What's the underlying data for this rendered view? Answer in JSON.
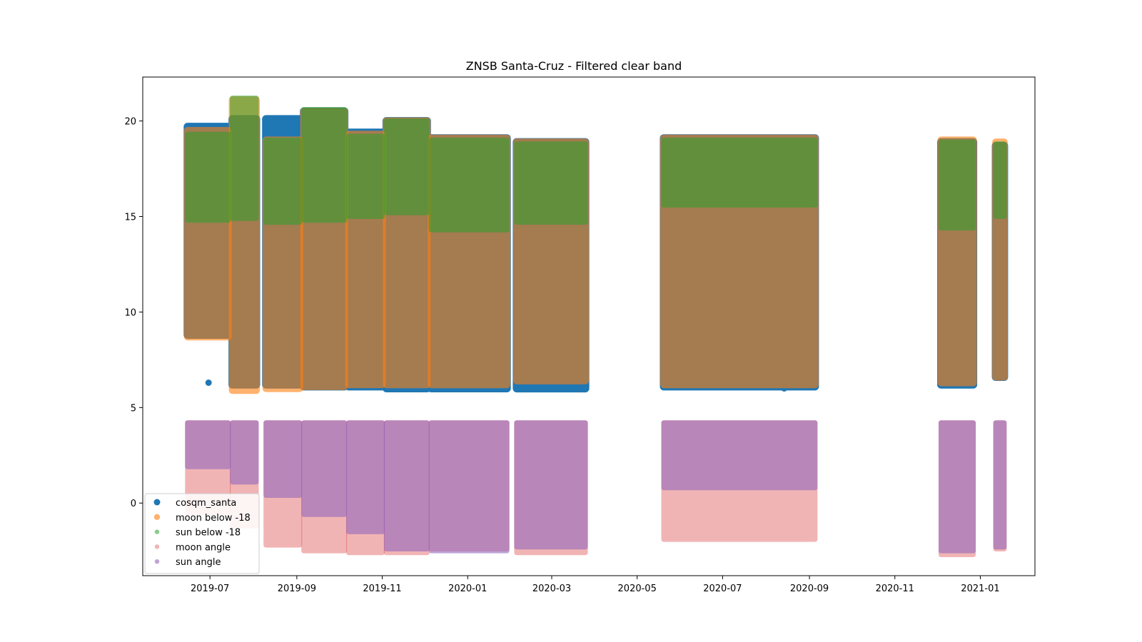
{
  "chart_data": {
    "type": "scatter",
    "title": "ZNSB Santa-Cruz - Filtered clear band",
    "xlabel": "",
    "ylabel": "",
    "xlim": [
      "2019-05-14",
      "2021-02-09"
    ],
    "ylim": [
      -3.8,
      22.3
    ],
    "x_ticks": [
      "2019-07",
      "2019-09",
      "2019-11",
      "2020-01",
      "2020-03",
      "2020-05",
      "2020-07",
      "2020-09",
      "2020-11",
      "2021-01"
    ],
    "y_ticks": [
      0,
      5,
      10,
      15,
      20
    ],
    "grid": false,
    "legend": {
      "position": "lower-left",
      "entries": [
        "cosqm_santa",
        "moon below -18",
        "sun below -18",
        "moon angle",
        "sun angle"
      ]
    },
    "colors": {
      "cosqm_santa": "#1f77b4",
      "moon below -18": "#ff7f0e",
      "sun below -18": "#2ca02c",
      "moon angle": "#d62728",
      "sun angle": "#9467bd"
    },
    "series": [
      {
        "name": "cosqm_santa",
        "ranges": [
          {
            "start": "2019-06-15",
            "end": "2019-07-14",
            "ymin": 8.8,
            "ymax": 19.7
          },
          {
            "start": "2019-07-17",
            "end": "2019-08-03",
            "ymin": 6.2,
            "ymax": 20.1
          },
          {
            "start": "2019-08-10",
            "end": "2019-09-03",
            "ymin": 6.2,
            "ymax": 20.1
          },
          {
            "start": "2019-09-06",
            "end": "2019-10-05",
            "ymin": 6.1,
            "ymax": 20.5
          },
          {
            "start": "2019-10-08",
            "end": "2019-11-01",
            "ymin": 6.1,
            "ymax": 19.4
          },
          {
            "start": "2019-11-04",
            "end": "2019-12-03",
            "ymin": 6.0,
            "ymax": 20.0
          },
          {
            "start": "2019-12-06",
            "end": "2020-01-29",
            "ymin": 6.0,
            "ymax": 19.1
          },
          {
            "start": "2020-02-05",
            "end": "2020-03-25",
            "ymin": 6.0,
            "ymax": 18.9
          },
          {
            "start": "2020-05-20",
            "end": "2020-09-05",
            "ymin": 6.1,
            "ymax": 19.1
          },
          {
            "start": "2020-12-04",
            "end": "2020-12-27",
            "ymin": 6.2,
            "ymax": 18.9
          },
          {
            "start": "2021-01-12",
            "end": "2021-01-18",
            "ymin": 6.6,
            "ymax": 18.7
          }
        ],
        "outliers": [
          {
            "x": "2019-06-30",
            "y": 6.3
          },
          {
            "x": "2020-08-14",
            "y": 6.0
          }
        ]
      },
      {
        "name": "moon below -18",
        "ranges": [
          {
            "start": "2019-06-15",
            "end": "2019-07-14",
            "ymin": 8.7,
            "ymax": 19.5
          },
          {
            "start": "2019-07-17",
            "end": "2019-08-03",
            "ymin": 5.9,
            "ymax": 21.1
          },
          {
            "start": "2019-08-10",
            "end": "2019-09-03",
            "ymin": 6.0,
            "ymax": 19.0
          },
          {
            "start": "2019-09-06",
            "end": "2019-10-05",
            "ymin": 6.1,
            "ymax": 20.5
          },
          {
            "start": "2019-10-08",
            "end": "2019-11-01",
            "ymin": 6.2,
            "ymax": 19.3
          },
          {
            "start": "2019-11-04",
            "end": "2019-12-03",
            "ymin": 6.2,
            "ymax": 20.0
          },
          {
            "start": "2019-12-06",
            "end": "2020-01-29",
            "ymin": 6.2,
            "ymax": 19.1
          },
          {
            "start": "2020-02-05",
            "end": "2020-03-25",
            "ymin": 6.4,
            "ymax": 18.9
          },
          {
            "start": "2020-05-20",
            "end": "2020-09-05",
            "ymin": 6.2,
            "ymax": 19.1
          },
          {
            "start": "2020-12-04",
            "end": "2020-12-27",
            "ymin": 6.3,
            "ymax": 19.0
          },
          {
            "start": "2021-01-12",
            "end": "2021-01-18",
            "ymin": 6.6,
            "ymax": 18.9
          }
        ]
      },
      {
        "name": "sun below -18",
        "ranges": [
          {
            "start": "2019-06-15",
            "end": "2019-07-14",
            "ymin": 14.8,
            "ymax": 19.3
          },
          {
            "start": "2019-07-17",
            "end": "2019-08-03",
            "ymin": 14.9,
            "ymax": 21.2
          },
          {
            "start": "2019-08-10",
            "end": "2019-09-03",
            "ymin": 14.7,
            "ymax": 19.0
          },
          {
            "start": "2019-09-06",
            "end": "2019-10-05",
            "ymin": 14.8,
            "ymax": 20.6
          },
          {
            "start": "2019-10-08",
            "end": "2019-11-01",
            "ymin": 15.0,
            "ymax": 19.2
          },
          {
            "start": "2019-11-04",
            "end": "2019-12-03",
            "ymin": 15.2,
            "ymax": 20.0
          },
          {
            "start": "2019-12-06",
            "end": "2020-01-29",
            "ymin": 14.3,
            "ymax": 19.0
          },
          {
            "start": "2020-02-05",
            "end": "2020-03-25",
            "ymin": 14.7,
            "ymax": 18.8
          },
          {
            "start": "2020-05-20",
            "end": "2020-09-05",
            "ymin": 15.6,
            "ymax": 19.0
          },
          {
            "start": "2020-12-04",
            "end": "2020-12-27",
            "ymin": 14.4,
            "ymax": 18.9
          },
          {
            "start": "2021-01-12",
            "end": "2021-01-18",
            "ymin": 15.0,
            "ymax": 18.8
          }
        ]
      },
      {
        "name": "moon angle",
        "ranges": [
          {
            "start": "2019-06-15",
            "end": "2019-07-14",
            "ymin": -0.5,
            "ymax": 4.2
          },
          {
            "start": "2019-07-17",
            "end": "2019-08-03",
            "ymin": -1.2,
            "ymax": 4.2
          },
          {
            "start": "2019-08-10",
            "end": "2019-09-03",
            "ymin": -2.2,
            "ymax": 4.2
          },
          {
            "start": "2019-09-06",
            "end": "2019-10-05",
            "ymin": -2.5,
            "ymax": 4.2
          },
          {
            "start": "2019-10-08",
            "end": "2019-11-01",
            "ymin": -2.6,
            "ymax": 4.2
          },
          {
            "start": "2019-11-04",
            "end": "2019-12-03",
            "ymin": -2.6,
            "ymax": 4.2
          },
          {
            "start": "2019-12-06",
            "end": "2020-01-29",
            "ymin": -2.4,
            "ymax": 4.2
          },
          {
            "start": "2020-02-05",
            "end": "2020-03-25",
            "ymin": -2.6,
            "ymax": 4.2
          },
          {
            "start": "2020-05-20",
            "end": "2020-09-05",
            "ymin": -1.9,
            "ymax": 4.2
          },
          {
            "start": "2020-12-04",
            "end": "2020-12-27",
            "ymin": -2.7,
            "ymax": 4.2
          },
          {
            "start": "2021-01-12",
            "end": "2021-01-18",
            "ymin": -2.4,
            "ymax": 4.2
          }
        ]
      },
      {
        "name": "sun angle",
        "ranges": [
          {
            "start": "2019-06-15",
            "end": "2019-07-14",
            "ymin": 1.9,
            "ymax": 4.2
          },
          {
            "start": "2019-07-17",
            "end": "2019-08-03",
            "ymin": 1.1,
            "ymax": 4.2
          },
          {
            "start": "2019-08-10",
            "end": "2019-09-03",
            "ymin": 0.4,
            "ymax": 4.2
          },
          {
            "start": "2019-09-06",
            "end": "2019-10-05",
            "ymin": -0.6,
            "ymax": 4.2
          },
          {
            "start": "2019-10-08",
            "end": "2019-11-01",
            "ymin": -1.5,
            "ymax": 4.2
          },
          {
            "start": "2019-11-04",
            "end": "2019-12-03",
            "ymin": -2.4,
            "ymax": 4.2
          },
          {
            "start": "2019-12-06",
            "end": "2020-01-29",
            "ymin": -2.5,
            "ymax": 4.2
          },
          {
            "start": "2020-02-05",
            "end": "2020-03-25",
            "ymin": -2.3,
            "ymax": 4.2
          },
          {
            "start": "2020-05-20",
            "end": "2020-09-05",
            "ymin": 0.8,
            "ymax": 4.2
          },
          {
            "start": "2020-12-04",
            "end": "2020-12-27",
            "ymin": -2.5,
            "ymax": 4.2
          },
          {
            "start": "2021-01-12",
            "end": "2021-01-18",
            "ymin": -2.3,
            "ymax": 4.2
          }
        ]
      }
    ]
  }
}
